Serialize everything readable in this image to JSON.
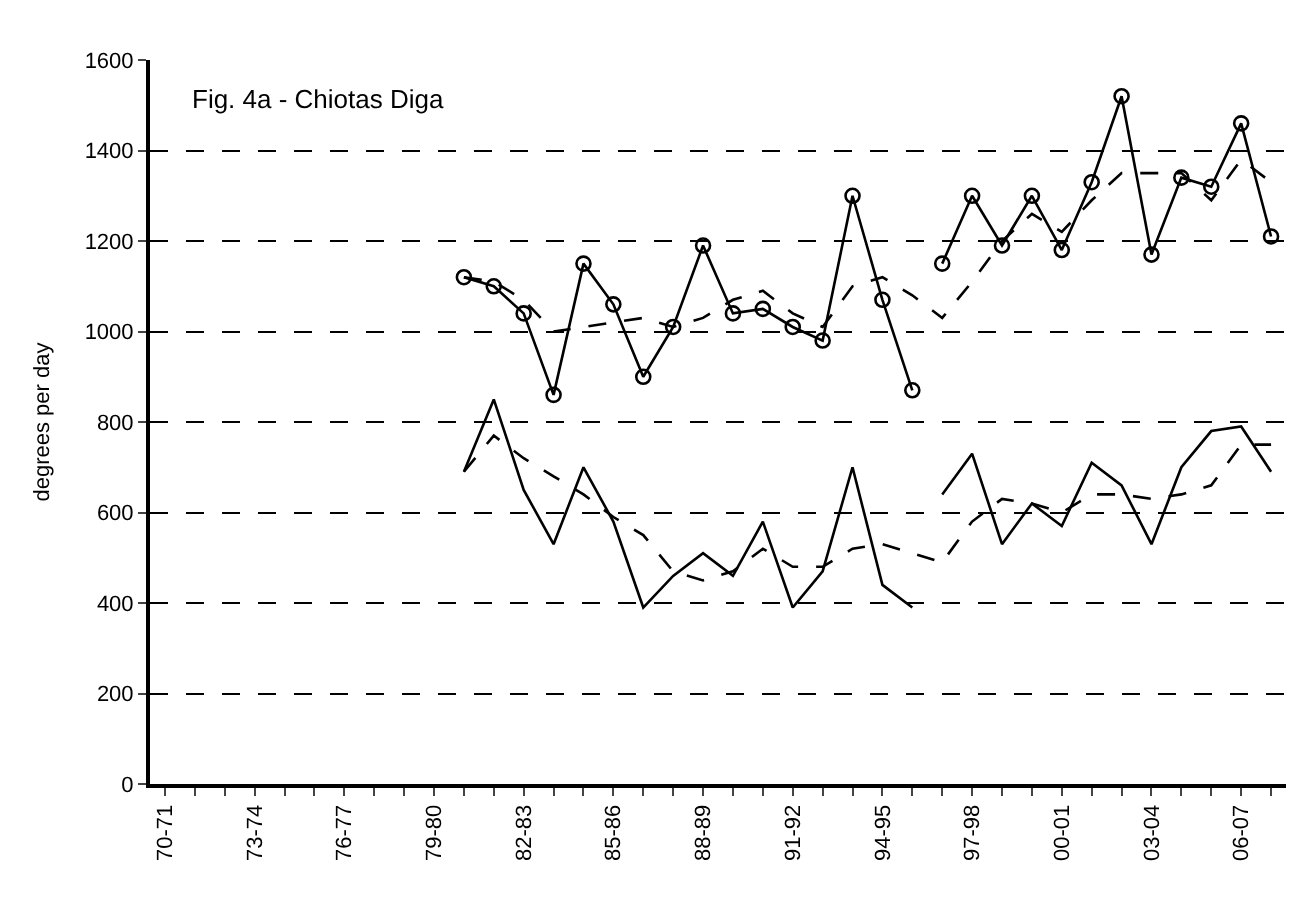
{
  "chart_data": {
    "type": "line",
    "title": "Fig. 4a - Chiotas Diga",
    "ylabel": "degrees per day",
    "categories": [
      "70-71",
      null,
      null,
      "73-74",
      null,
      null,
      "76-77",
      null,
      null,
      "79-80",
      null,
      null,
      "82-83",
      null,
      null,
      "85-86",
      null,
      null,
      "88-89",
      null,
      null,
      "91-92",
      null,
      null,
      "94-95",
      null,
      null,
      "97-98",
      null,
      null,
      "00-01",
      null,
      null,
      "03-04",
      null,
      null,
      "06-07",
      null
    ],
    "ylim": [
      0,
      1600
    ],
    "yticks": [
      0,
      200,
      400,
      600,
      800,
      1000,
      1200,
      1400,
      1600
    ],
    "grid": "y",
    "series": [
      {
        "color": "#000000",
        "marker": "circle",
        "line_style": "solid",
        "values": [
          null,
          null,
          null,
          null,
          null,
          null,
          null,
          null,
          null,
          null,
          1120,
          1100,
          1040,
          860,
          1150,
          1060,
          900,
          1010,
          1190,
          1040,
          1050,
          1010,
          980,
          1300,
          1070,
          870,
          null,
          null,
          null,
          null,
          null,
          null,
          null,
          null,
          null,
          null,
          null,
          null
        ]
      },
      {
        "color": "#000000",
        "marker": "circle",
        "line_style": "solid",
        "values": [
          null,
          null,
          null,
          null,
          null,
          null,
          null,
          null,
          null,
          null,
          null,
          null,
          null,
          null,
          null,
          null,
          null,
          null,
          null,
          null,
          null,
          null,
          null,
          null,
          null,
          null,
          1150,
          1300,
          1190,
          1300,
          1180,
          1330,
          1520,
          1170,
          1340,
          1320,
          1460,
          1210
        ]
      },
      {
        "color": "#000000",
        "marker": "none",
        "line_style": "dashed",
        "values": [
          null,
          null,
          null,
          null,
          null,
          null,
          null,
          null,
          null,
          null,
          1120,
          1110,
          1070,
          1000,
          1010,
          1020,
          1030,
          1010,
          1030,
          1070,
          1090,
          1040,
          1010,
          1100,
          1120,
          1080,
          1030,
          1110,
          1200,
          1260,
          1220,
          1290,
          1350,
          1350,
          1350,
          1290,
          1380,
          1330
        ]
      },
      {
        "color": "#000000",
        "marker": "none",
        "line_style": "solid",
        "values": [
          null,
          null,
          null,
          null,
          null,
          null,
          null,
          null,
          null,
          null,
          690,
          850,
          650,
          530,
          700,
          580,
          390,
          460,
          510,
          460,
          580,
          390,
          470,
          700,
          440,
          390,
          null,
          null,
          null,
          null,
          null,
          null,
          null,
          null,
          null,
          null,
          null,
          null
        ]
      },
      {
        "color": "#000000",
        "marker": "none",
        "line_style": "solid",
        "values": [
          null,
          null,
          null,
          null,
          null,
          null,
          null,
          null,
          null,
          null,
          null,
          null,
          null,
          null,
          null,
          null,
          null,
          null,
          null,
          null,
          null,
          null,
          null,
          null,
          null,
          null,
          640,
          730,
          530,
          620,
          570,
          710,
          660,
          530,
          700,
          780,
          790,
          690
        ]
      },
      {
        "color": "#000000",
        "marker": "none",
        "line_style": "dashed",
        "values": [
          null,
          null,
          null,
          null,
          null,
          null,
          null,
          null,
          null,
          null,
          690,
          770,
          720,
          680,
          640,
          590,
          550,
          470,
          450,
          470,
          520,
          480,
          480,
          520,
          530,
          510,
          490,
          580,
          630,
          620,
          600,
          640,
          640,
          630,
          640,
          660,
          750,
          750
        ]
      }
    ]
  }
}
